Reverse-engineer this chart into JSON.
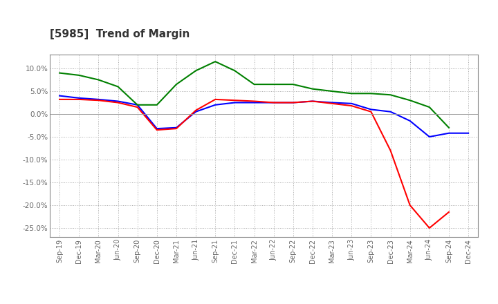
{
  "title": "[5985]  Trend of Margin",
  "x_labels": [
    "Sep-19",
    "Dec-19",
    "Mar-20",
    "Jun-20",
    "Sep-20",
    "Dec-20",
    "Mar-21",
    "Jun-21",
    "Sep-21",
    "Dec-21",
    "Mar-22",
    "Jun-22",
    "Sep-22",
    "Dec-22",
    "Mar-23",
    "Jun-23",
    "Sep-23",
    "Dec-23",
    "Mar-24",
    "Jun-24",
    "Sep-24",
    "Dec-24"
  ],
  "ordinary_income": [
    4.0,
    3.5,
    3.2,
    2.8,
    2.0,
    -3.2,
    -3.0,
    0.5,
    2.0,
    2.5,
    2.5,
    2.5,
    2.5,
    2.8,
    2.5,
    2.3,
    1.0,
    0.5,
    -1.5,
    -5.0,
    -4.2,
    -4.2
  ],
  "net_income": [
    3.2,
    3.2,
    3.0,
    2.5,
    1.5,
    -3.5,
    -3.2,
    0.8,
    3.2,
    3.0,
    2.8,
    2.5,
    2.5,
    2.8,
    2.3,
    1.8,
    0.5,
    -8.0,
    -20.0,
    -25.0,
    -21.5,
    null
  ],
  "operating_cashflow": [
    9.0,
    8.5,
    7.5,
    6.0,
    2.0,
    2.0,
    6.5,
    9.5,
    11.5,
    9.5,
    6.5,
    6.5,
    6.5,
    5.5,
    5.0,
    4.5,
    4.5,
    4.2,
    3.0,
    1.5,
    -3.0,
    null
  ],
  "ylim": [
    -27,
    13
  ],
  "yticks": [
    10.0,
    5.0,
    0.0,
    -5.0,
    -10.0,
    -15.0,
    -20.0,
    -25.0
  ],
  "line_colors": {
    "ordinary_income": "#0000FF",
    "net_income": "#FF0000",
    "operating_cashflow": "#008000"
  },
  "background_color": "#FFFFFF",
  "grid_color": "#AAAAAA",
  "title_color": "#333333"
}
